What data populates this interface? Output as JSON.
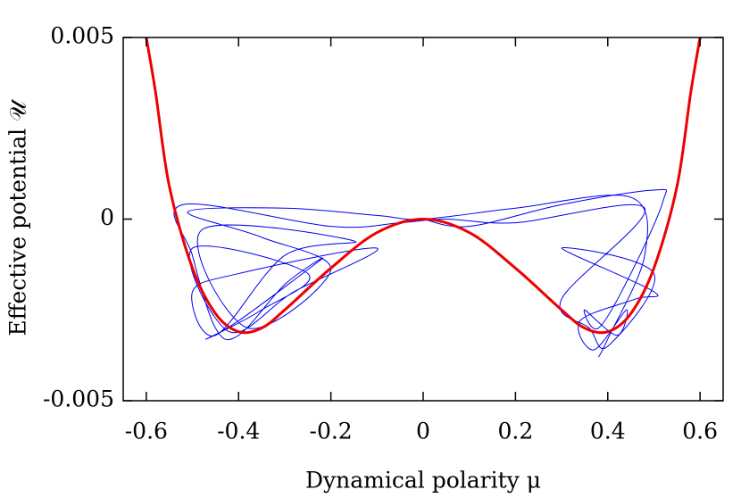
{
  "chart_data": {
    "type": "line",
    "xlabel": "Dynamical polarity μ",
    "ylabel": "Effective potential 𝒰",
    "xlim": [
      -0.65,
      0.65
    ],
    "ylim": [
      -0.005,
      0.005
    ],
    "xticks": [
      -0.6,
      -0.4,
      -0.2,
      0,
      0.2,
      0.4,
      0.6
    ],
    "yticks": [
      -0.005,
      0,
      0.005
    ],
    "series": [
      {
        "color": "#0000ee",
        "x": [
          0,
          0.1,
          0.3,
          0.5,
          0.52,
          0.45,
          0.38,
          0.35,
          0.42,
          0.44,
          0.37,
          0.34,
          0.46,
          0.5,
          0.3,
          0.5,
          0.4,
          0.36,
          0.3,
          0.48,
          0.2,
          0.05,
          -0.05,
          -0.2,
          -0.52,
          -0.5,
          -0.45,
          -0.4,
          -0.3,
          -0.22,
          -0.4,
          -0.47,
          -0.35,
          -0.25,
          -0.5,
          -0.42,
          -0.28,
          -0.1,
          -0.4,
          -0.5,
          -0.45,
          -0.3,
          -0.15,
          -0.48,
          -0.38,
          -0.2,
          -0.35,
          -0.51,
          -0.3,
          -0.1,
          0,
          0.2,
          0.45,
          0.48,
          0.4,
          0.38
        ],
        "values": [
          0,
          -0.0002,
          0.0004,
          0.0008,
          0.0005,
          -0.0015,
          -0.003,
          -0.0025,
          -0.0032,
          -0.0025,
          -0.0036,
          -0.0028,
          -0.0022,
          -0.002,
          -0.0008,
          -0.0015,
          -0.0035,
          -0.003,
          -0.0022,
          0.0003,
          -0.0001,
          0,
          -0.0001,
          -0.0002,
          0.0004,
          -0.001,
          -0.003,
          -0.0032,
          -0.0018,
          -0.0011,
          -0.0028,
          -0.0033,
          -0.0025,
          -0.0015,
          -0.0008,
          -0.0031,
          -0.002,
          -0.0008,
          -0.0015,
          -0.002,
          -0.0032,
          -0.001,
          -0.0006,
          -0.0003,
          -0.003,
          -0.0014,
          -0.0005,
          0.0002,
          0.0003,
          0.0001,
          0,
          0.0003,
          0.0006,
          -0.001,
          -0.0033,
          -0.0038
        ]
      },
      {
        "color": "#ee0000",
        "x": [
          -0.6,
          -0.58,
          -0.55,
          -0.5,
          -0.45,
          -0.4,
          -0.35,
          -0.3,
          -0.2,
          -0.1,
          0,
          0.1,
          0.2,
          0.3,
          0.35,
          0.4,
          0.45,
          0.5,
          0.55,
          0.58,
          0.6
        ],
        "values": [
          0.005,
          0.0035,
          0.0009,
          -0.00135,
          -0.0026,
          -0.0031,
          -0.003,
          -0.0025,
          -0.00135,
          -0.00037,
          0,
          -0.00037,
          -0.00135,
          -0.0025,
          -0.003,
          -0.0031,
          -0.0026,
          -0.00135,
          0.0009,
          0.0035,
          0.005
        ]
      }
    ]
  }
}
